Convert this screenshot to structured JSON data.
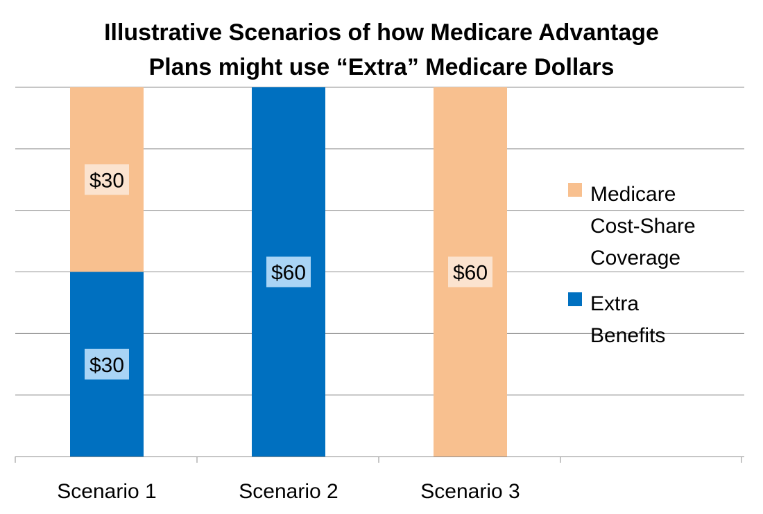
{
  "chart_data": {
    "type": "bar",
    "stacked": true,
    "title_lines": [
      "Illustrative Scenarios of how Medicare Advantage",
      "Plans might use “Extra” Medicare Dollars"
    ],
    "xlabel": "",
    "ylabel": "",
    "categories": [
      "Scenario 1",
      "Scenario 2",
      "Scenario 3"
    ],
    "series": [
      {
        "name": "Extra Benefits",
        "values": [
          30,
          60,
          0
        ],
        "labels": [
          "$30",
          "$60",
          ""
        ],
        "color": "#0070C0",
        "label_bg": "#A9D4F5"
      },
      {
        "name": "Medicare Cost-Share Coverage",
        "values": [
          30,
          0,
          60
        ],
        "labels": [
          "$30",
          "",
          "$60"
        ],
        "color": "#F8C08F",
        "label_bg": "#FBE3CF"
      }
    ],
    "ylim": [
      0,
      60
    ],
    "y_grid_step": 10,
    "grid": true,
    "y_tick_labels_shown": false,
    "legend": {
      "position": "right",
      "items": [
        {
          "series": "Medicare Cost-Share Coverage",
          "lines": [
            "Medicare",
            "Cost-Share",
            "Coverage"
          ]
        },
        {
          "series": "Extra Benefits",
          "lines": [
            "Extra",
            "Benefits"
          ]
        }
      ]
    }
  }
}
